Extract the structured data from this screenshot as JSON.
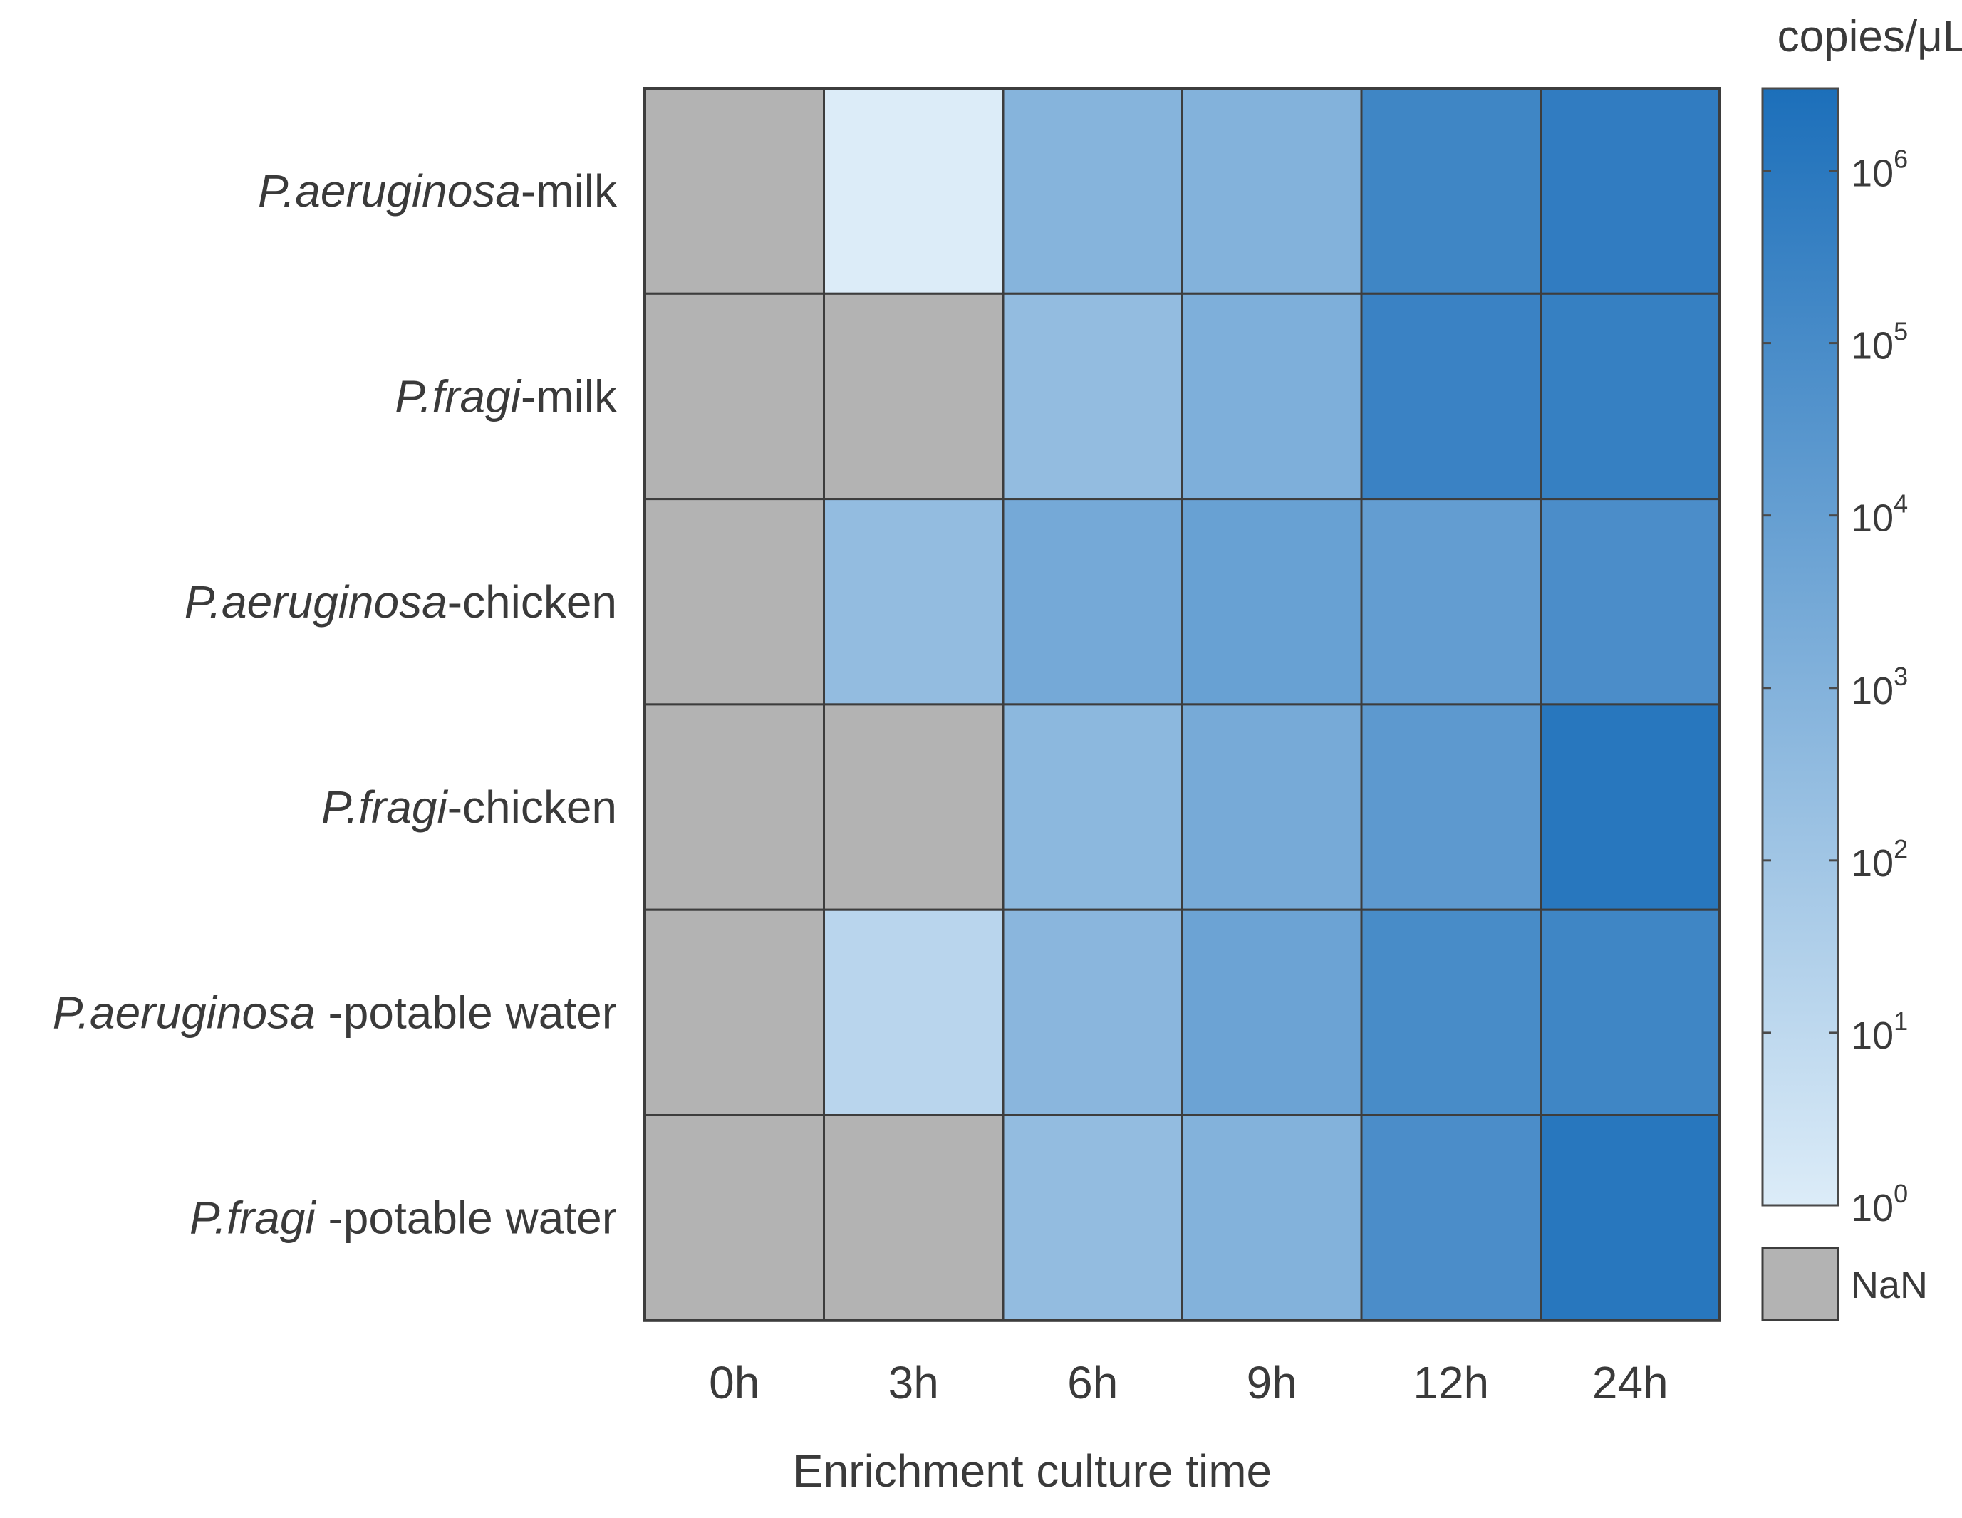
{
  "chart_data": {
    "type": "heatmap",
    "title": "",
    "xlabel": "Enrichment culture time",
    "ylabel": "",
    "colorbar_label": "copies/μL",
    "scale": "log10",
    "colorbar_range": [
      1,
      3000000
    ],
    "colorbar_ticks": [
      {
        "base": "10",
        "exp": "0",
        "value": 1
      },
      {
        "base": "10",
        "exp": "1",
        "value": 10
      },
      {
        "base": "10",
        "exp": "2",
        "value": 100
      },
      {
        "base": "10",
        "exp": "3",
        "value": 1000
      },
      {
        "base": "10",
        "exp": "4",
        "value": 10000
      },
      {
        "base": "10",
        "exp": "5",
        "value": 100000
      },
      {
        "base": "10",
        "exp": "6",
        "value": 1000000
      }
    ],
    "nan_label": "NaN",
    "colors": {
      "low": "#dcecf8",
      "high": "#1c6fba",
      "nan": "#b3b3b3",
      "grid": "#3d3d3d"
    },
    "columns": [
      "0h",
      "3h",
      "6h",
      "9h",
      "12h",
      "24h"
    ],
    "rows": [
      {
        "italic": "P.aeruginosa",
        "rest": "-milk"
      },
      {
        "italic": "P.fragi",
        "rest": "-milk"
      },
      {
        "italic": "P.aeruginosa",
        "rest": "-chicken"
      },
      {
        "italic": "P.fragi",
        "rest": "-chicken"
      },
      {
        "italic": "P.aeruginosa",
        "rest": " -potable water"
      },
      {
        "italic": "P.fragi",
        "rest": " -potable water"
      }
    ],
    "values": [
      [
        null,
        1,
        800,
        1000,
        200000,
        600000
      ],
      [
        null,
        null,
        300,
        1500,
        300000,
        400000
      ],
      [
        null,
        300,
        3000,
        8000,
        12000,
        80000
      ],
      [
        null,
        null,
        500,
        2500,
        20000,
        1200000
      ],
      [
        null,
        15,
        600,
        6000,
        100000,
        200000
      ],
      [
        null,
        null,
        300,
        1000,
        80000,
        1200000
      ]
    ]
  }
}
